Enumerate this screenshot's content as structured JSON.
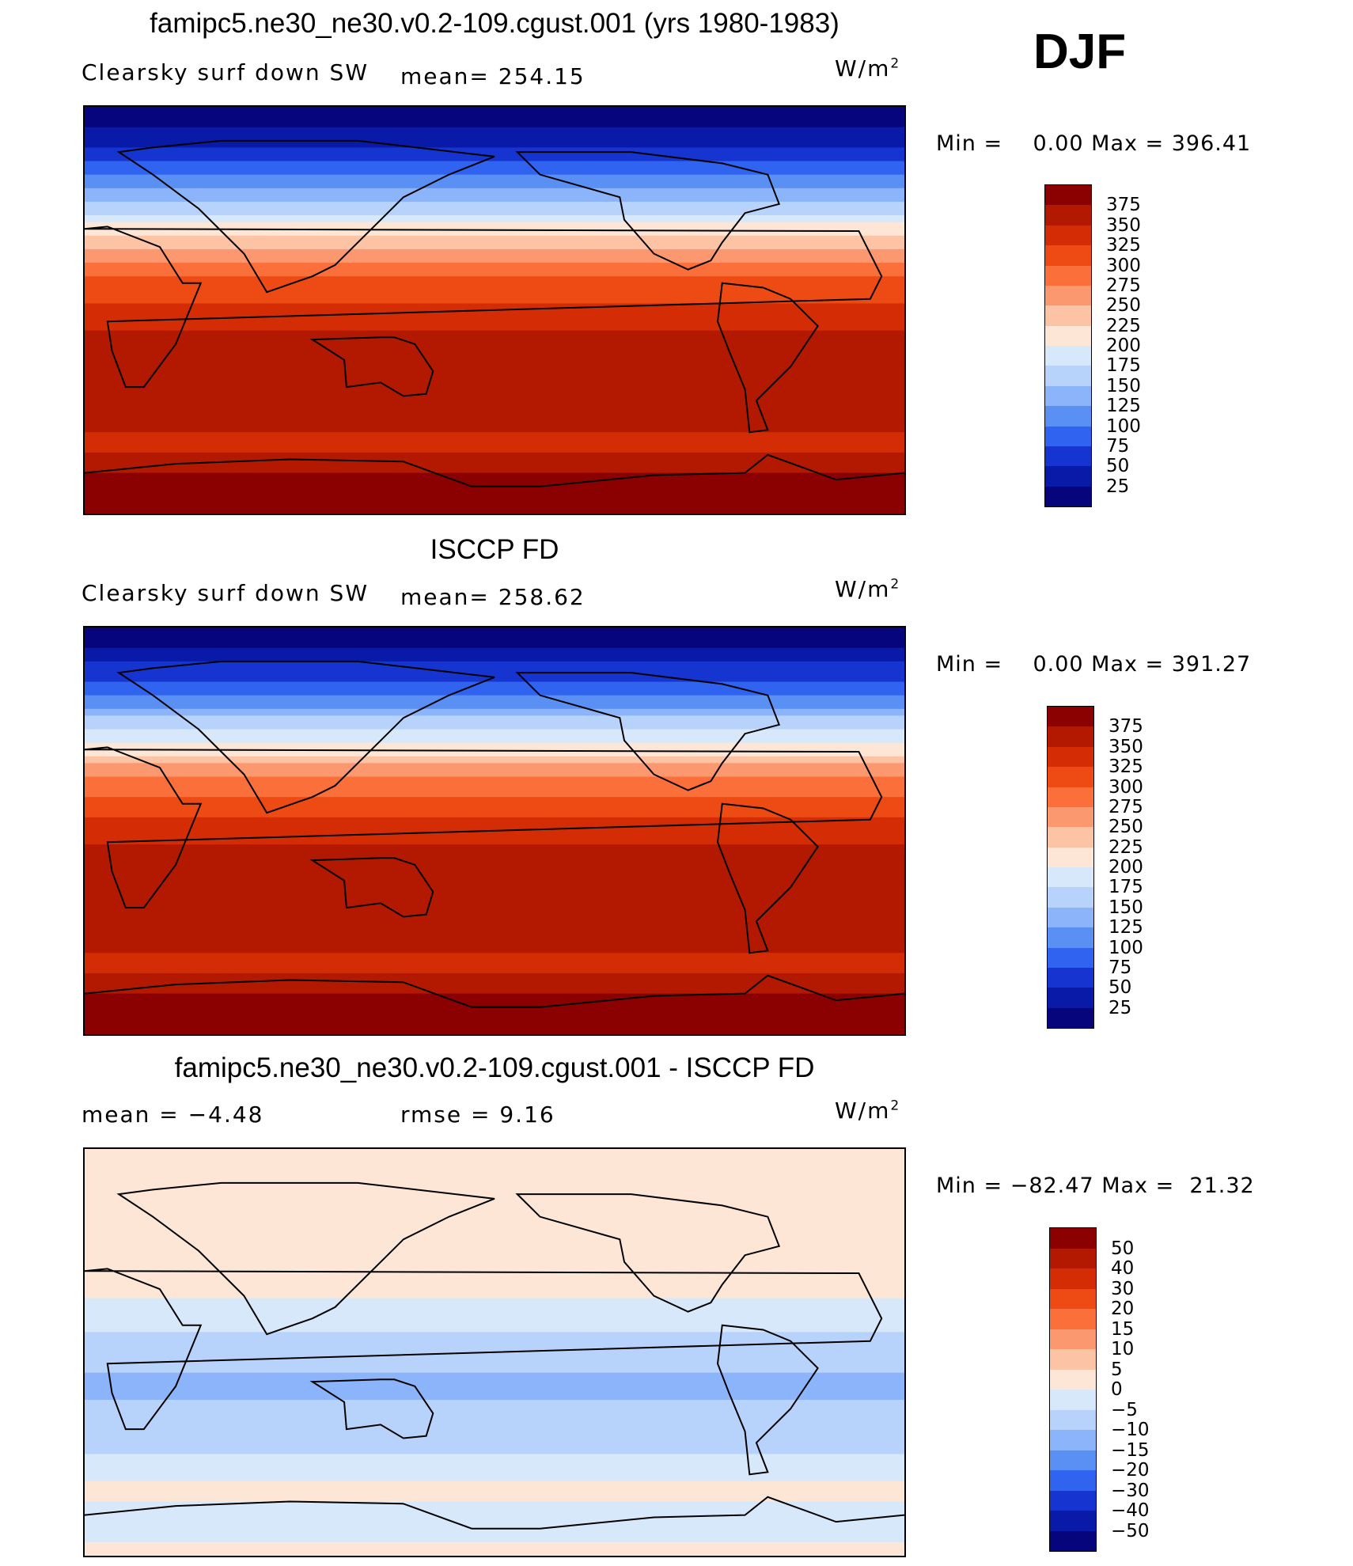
{
  "season": "DJF",
  "units_base": "W/m",
  "units_exp": "2",
  "panels": [
    {
      "title": "famipc5.ne30_ne30.v0.2-109.cgust.001 (yrs 1980-1983)",
      "left_label": "Clearsky surf down SW",
      "mid_label": "mean= 254.15",
      "minmax": "Min =    0.00 Max = 396.41"
    },
    {
      "title": "ISCCP FD",
      "left_label": "Clearsky surf down SW",
      "mid_label": "mean= 258.62",
      "minmax": "Min =    0.00 Max = 391.27"
    },
    {
      "title": "famipc5.ne30_ne30.v0.2-109.cgust.001 - ISCCP FD",
      "left_label": "mean =   −4.48",
      "mid_label": "rmse =    9.16",
      "minmax": "Min = −82.47 Max =  21.32"
    }
  ],
  "chart_data": [
    {
      "type": "heatmap",
      "title": "famipc5.ne30_ne30.v0.2-109.cgust.001 (yrs 1980-1983)",
      "subtitle": "Clearsky surf down SW",
      "mean": 254.15,
      "min": 0.0,
      "max": 396.41,
      "units": "W/m2",
      "contour_levels": [
        25,
        50,
        75,
        100,
        125,
        150,
        175,
        200,
        225,
        250,
        275,
        300,
        325,
        350,
        375
      ],
      "zonal_profile_north_to_south": [
        {
          "lat": 90,
          "value": 0
        },
        {
          "lat": 75,
          "value": 40
        },
        {
          "lat": 60,
          "value": 95
        },
        {
          "lat": 45,
          "value": 165
        },
        {
          "lat": 30,
          "value": 240
        },
        {
          "lat": 15,
          "value": 300
        },
        {
          "lat": 0,
          "value": 335
        },
        {
          "lat": -15,
          "value": 360
        },
        {
          "lat": -30,
          "value": 365
        },
        {
          "lat": -45,
          "value": 355
        },
        {
          "lat": -60,
          "value": 345
        },
        {
          "lat": -75,
          "value": 385
        },
        {
          "lat": -90,
          "value": 385
        }
      ]
    },
    {
      "type": "heatmap",
      "title": "ISCCP FD",
      "subtitle": "Clearsky surf down SW",
      "mean": 258.62,
      "min": 0.0,
      "max": 391.27,
      "units": "W/m2",
      "contour_levels": [
        25,
        50,
        75,
        100,
        125,
        150,
        175,
        200,
        225,
        250,
        275,
        300,
        325,
        350,
        375
      ],
      "zonal_profile_north_to_south": [
        {
          "lat": 90,
          "value": 0
        },
        {
          "lat": 75,
          "value": 45
        },
        {
          "lat": 60,
          "value": 100
        },
        {
          "lat": 45,
          "value": 175
        },
        {
          "lat": 30,
          "value": 245
        },
        {
          "lat": 15,
          "value": 305
        },
        {
          "lat": 0,
          "value": 340
        },
        {
          "lat": -15,
          "value": 360
        },
        {
          "lat": -30,
          "value": 365
        },
        {
          "lat": -45,
          "value": 360
        },
        {
          "lat": -60,
          "value": 345
        },
        {
          "lat": -75,
          "value": 380
        },
        {
          "lat": -90,
          "value": 380
        }
      ]
    },
    {
      "type": "heatmap",
      "title": "famipc5.ne30_ne30.v0.2-109.cgust.001 - ISCCP FD",
      "mean": -4.48,
      "rmse": 9.16,
      "min": -82.47,
      "max": 21.32,
      "units": "W/m2",
      "contour_levels": [
        -50,
        -40,
        -30,
        -20,
        -15,
        -10,
        -5,
        0,
        5,
        10,
        15,
        20,
        30,
        40,
        50
      ],
      "zonal_profile_north_to_south": [
        {
          "lat": 90,
          "value": 3
        },
        {
          "lat": 75,
          "value": 2
        },
        {
          "lat": 60,
          "value": 3
        },
        {
          "lat": 45,
          "value": 3
        },
        {
          "lat": 30,
          "value": 2
        },
        {
          "lat": 15,
          "value": -3
        },
        {
          "lat": 0,
          "value": -8
        },
        {
          "lat": -15,
          "value": -12
        },
        {
          "lat": -30,
          "value": -8
        },
        {
          "lat": -45,
          "value": -5
        },
        {
          "lat": -60,
          "value": 2
        },
        {
          "lat": -75,
          "value": -3
        },
        {
          "lat": -90,
          "value": 2
        }
      ]
    }
  ],
  "colorbars": [
    {
      "labels": [
        "375",
        "350",
        "325",
        "300",
        "275",
        "250",
        "225",
        "200",
        "175",
        "150",
        "125",
        "100",
        "75",
        "50",
        "25"
      ],
      "colors": [
        "#8b0000",
        "#b31800",
        "#d42c05",
        "#ee4a14",
        "#fb6f3a",
        "#fb9870",
        "#fcc3a5",
        "#fde6d6",
        "#d7e8fa",
        "#b7d3fb",
        "#8cb4fa",
        "#5a8ff3",
        "#2f63f0",
        "#1634d0",
        "#0a1aa8",
        "#06057c"
      ]
    },
    {
      "labels": [
        "375",
        "350",
        "325",
        "300",
        "275",
        "250",
        "225",
        "200",
        "175",
        "150",
        "125",
        "100",
        "75",
        "50",
        "25"
      ],
      "colors": [
        "#8b0000",
        "#b31800",
        "#d42c05",
        "#ee4a14",
        "#fb6f3a",
        "#fb9870",
        "#fcc3a5",
        "#fde6d6",
        "#d7e8fa",
        "#b7d3fb",
        "#8cb4fa",
        "#5a8ff3",
        "#2f63f0",
        "#1634d0",
        "#0a1aa8",
        "#06057c"
      ]
    },
    {
      "labels": [
        "50",
        "40",
        "30",
        "20",
        "15",
        "10",
        "5",
        "0",
        "−5",
        "−10",
        "−15",
        "−20",
        "−30",
        "−40",
        "−50"
      ],
      "colors": [
        "#8b0000",
        "#b31800",
        "#d42c05",
        "#ee4a14",
        "#fb6f3a",
        "#fb9870",
        "#fcc3a5",
        "#fde6d6",
        "#d7e8fa",
        "#b7d3fb",
        "#8cb4fa",
        "#5a8ff3",
        "#2f63f0",
        "#1634d0",
        "#0a1aa8",
        "#06057c"
      ]
    }
  ]
}
